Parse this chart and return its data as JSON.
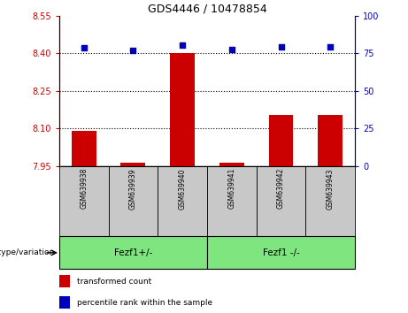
{
  "title": "GDS4446 / 10478854",
  "samples": [
    "GSM639938",
    "GSM639939",
    "GSM639940",
    "GSM639941",
    "GSM639942",
    "GSM639943"
  ],
  "bar_values": [
    8.09,
    7.963,
    8.401,
    7.963,
    8.155,
    8.155
  ],
  "percentile_values": [
    78.5,
    77.0,
    80.5,
    77.5,
    79.0,
    79.0
  ],
  "ylim_left": [
    7.95,
    8.55
  ],
  "ylim_right": [
    0,
    100
  ],
  "yticks_left": [
    7.95,
    8.1,
    8.25,
    8.4,
    8.55
  ],
  "yticks_right": [
    0,
    25,
    50,
    75,
    100
  ],
  "hlines": [
    8.1,
    8.25,
    8.4
  ],
  "bar_color": "#cc0000",
  "scatter_color": "#0000bb",
  "bar_bottom": 7.95,
  "group1_label": "Fezf1+/-",
  "group2_label": "Fezf1 -/-",
  "group1_range": [
    0,
    2
  ],
  "group2_range": [
    3,
    5
  ],
  "genotype_label": "genotype/variation",
  "legend_red": "transformed count",
  "legend_blue": "percentile rank within the sample",
  "left_tick_color": "#cc0000",
  "right_tick_color": "#0000bb",
  "group_bg_color": "#7FE57F",
  "sample_bg_color": "#c8c8c8",
  "bar_width": 0.5
}
